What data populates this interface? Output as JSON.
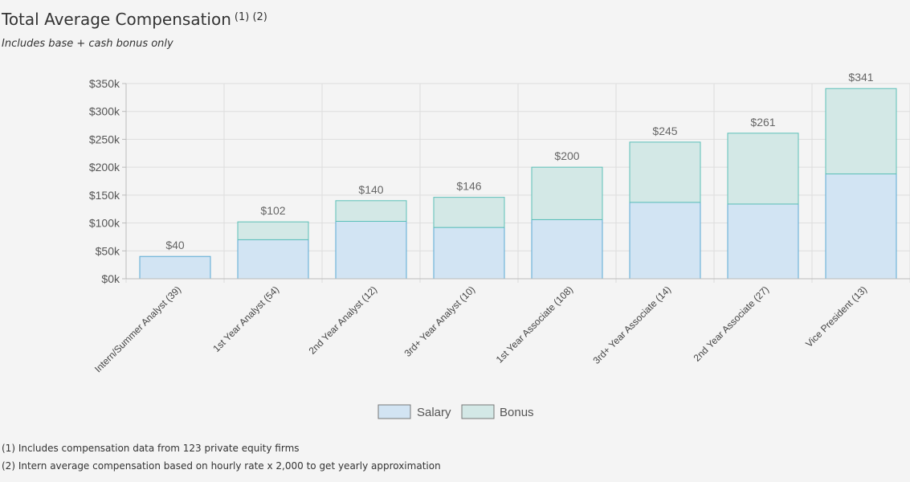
{
  "header": {
    "title": "Total Average Compensation",
    "title_notes": "(1) (2)",
    "subtitle": "Includes base + cash bonus only"
  },
  "footnotes": [
    "(1) Includes compensation data from 123 private equity firms",
    "(2) Intern average compensation based on hourly rate x 2,000 to get yearly approximation"
  ],
  "chart_data": {
    "type": "bar",
    "stacked": true,
    "categories": [
      "Intern/Summer Analyst (39)",
      "1st Year Analyst (54)",
      "2nd Year Analyst (12)",
      "3rd+ Year Analyst (10)",
      "1st Year Associate (108)",
      "3rd+ Year Associate (14)",
      "2nd Year Associate (27)",
      "Vice President (13)"
    ],
    "series": [
      {
        "name": "Salary",
        "values": [
          40,
          70,
          103,
          92,
          106,
          137,
          134,
          188
        ],
        "color": "#d2e4f3",
        "stroke": "#5aaad3"
      },
      {
        "name": "Bonus",
        "values": [
          0,
          32,
          37,
          54,
          94,
          108,
          127,
          153
        ],
        "color": "#d3e8e6",
        "stroke": "#5cc0b8"
      }
    ],
    "total_labels": [
      "$40",
      "$102",
      "$140",
      "$146",
      "$200",
      "$245",
      "$261",
      "$341"
    ],
    "y_ticks": [
      "$0k",
      "$50k",
      "$100k",
      "$150k",
      "$200k",
      "$250k",
      "$300k",
      "$350k"
    ],
    "ylim": [
      0,
      350
    ],
    "grid": true,
    "legend_position": "bottom"
  }
}
